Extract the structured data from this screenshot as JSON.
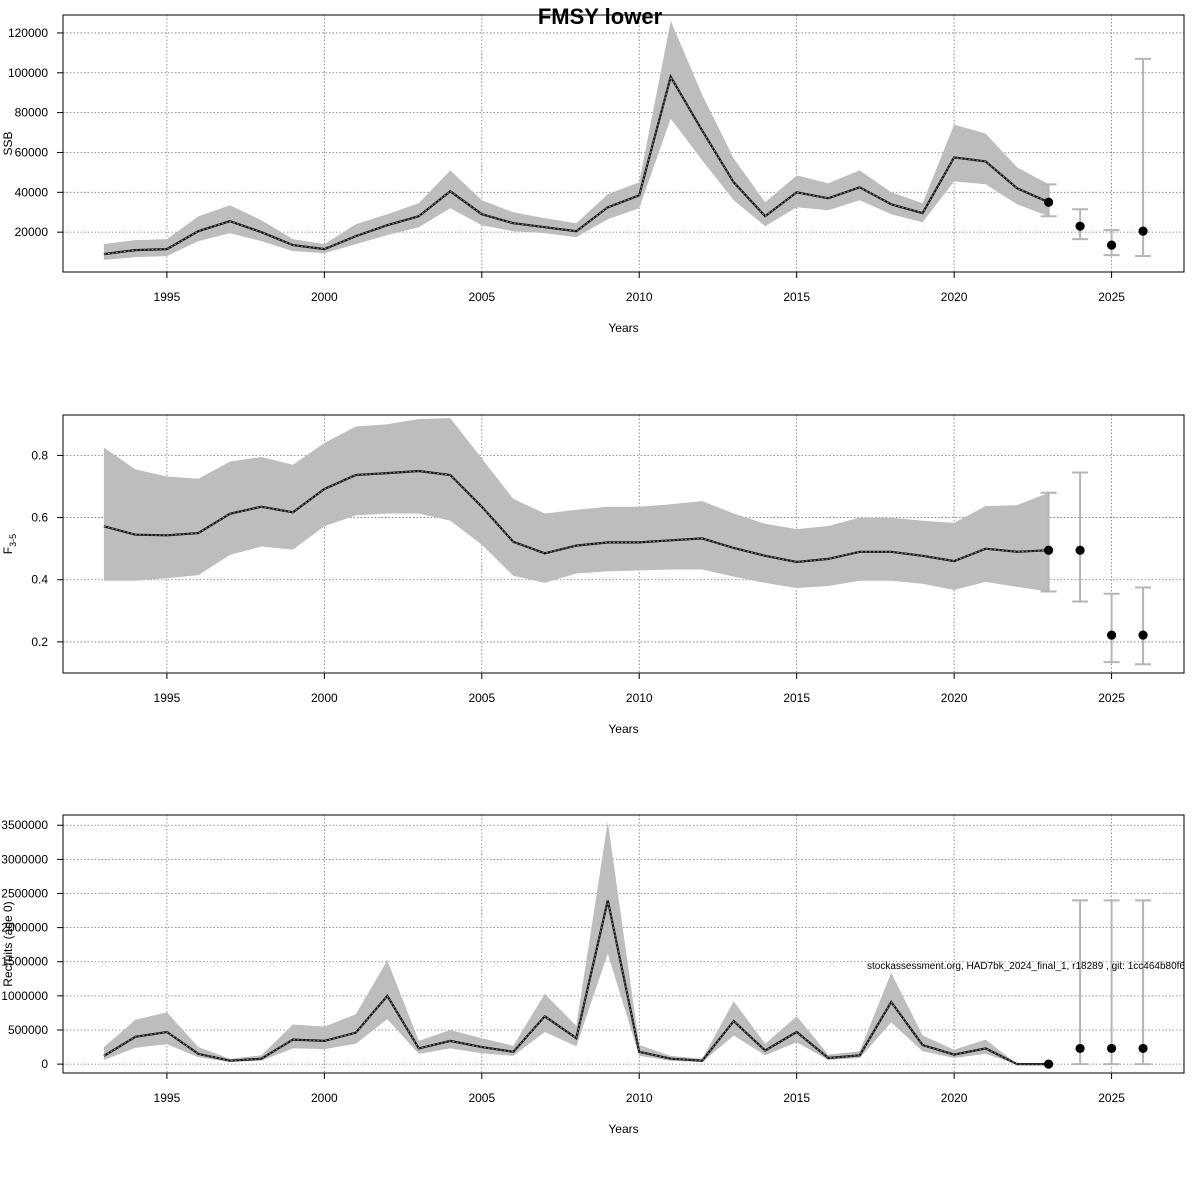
{
  "title": "FMSY lower",
  "footnote": "stockassessment.org, HAD7bk_2024_final_1, r18289 , git: 1cc464b80f6",
  "chart_data": [
    {
      "type": "line",
      "xlabel": "Years",
      "ylabel": "SSB",
      "xlim": [
        1991.7,
        2027.3
      ],
      "ylim": [
        0,
        129000
      ],
      "xticks": [
        1995,
        2000,
        2005,
        2010,
        2015,
        2020,
        2025
      ],
      "yticks": [
        20000,
        40000,
        60000,
        80000,
        100000,
        120000
      ],
      "ytick_labels": [
        "20000",
        "40000",
        "60000",
        "80000",
        "100000",
        "120000"
      ],
      "grid": true,
      "x": [
        1993,
        1994,
        1995,
        1996,
        1997,
        1998,
        1999,
        2000,
        2001,
        2002,
        2003,
        2004,
        2005,
        2006,
        2007,
        2008,
        2009,
        2010,
        2011,
        2012,
        2013,
        2014,
        2015,
        2016,
        2017,
        2018,
        2019,
        2020,
        2021,
        2022,
        2023
      ],
      "estimate": [
        9000,
        11000,
        11500,
        20500,
        25500,
        20000,
        13500,
        11500,
        18000,
        23500,
        28000,
        40500,
        29000,
        24500,
        22500,
        20500,
        32500,
        38500,
        98000,
        71000,
        45000,
        28000,
        40000,
        37000,
        42500,
        34000,
        29500,
        57500,
        55500,
        42000,
        35000
      ],
      "lower": [
        6000,
        7500,
        8000,
        15500,
        19500,
        15500,
        10500,
        9500,
        14000,
        18500,
        22500,
        32000,
        23500,
        20500,
        19500,
        17500,
        26500,
        32000,
        77000,
        56000,
        36000,
        23000,
        32500,
        31000,
        36000,
        29000,
        25000,
        45500,
        44000,
        34000,
        28000
      ],
      "upper": [
        14000,
        16000,
        16500,
        28000,
        33500,
        26000,
        16500,
        14000,
        24000,
        29000,
        34500,
        51000,
        36000,
        30000,
        27000,
        24500,
        39000,
        45000,
        126000,
        89000,
        57000,
        35000,
        48500,
        44500,
        51000,
        40000,
        34500,
        74000,
        69500,
        52500,
        44000
      ],
      "forecast": {
        "x": [
          2023,
          2024,
          2025,
          2026
        ],
        "values": [
          35000,
          23000,
          13500,
          20500
        ],
        "lower": [
          28000,
          16500,
          8500,
          8000
        ],
        "upper": [
          44000,
          31500,
          21000,
          107000
        ]
      }
    },
    {
      "type": "line",
      "xlabel": "Years",
      "ylabel": "F",
      "ylabel_subscript": "3-5",
      "xlim": [
        1991.7,
        2027.3
      ],
      "ylim": [
        0.1,
        0.93
      ],
      "xticks": [
        1995,
        2000,
        2005,
        2010,
        2015,
        2020,
        2025
      ],
      "yticks": [
        0.2,
        0.4,
        0.6,
        0.8
      ],
      "ytick_labels": [
        "0.2",
        "0.4",
        "0.6",
        "0.8"
      ],
      "grid": true,
      "x": [
        1993,
        1994,
        1995,
        1996,
        1997,
        1998,
        1999,
        2000,
        2001,
        2002,
        2003,
        2004,
        2005,
        2006,
        2007,
        2008,
        2009,
        2010,
        2011,
        2012,
        2013,
        2014,
        2015,
        2016,
        2017,
        2018,
        2019,
        2020,
        2021,
        2022,
        2023
      ],
      "estimate": [
        0.572,
        0.545,
        0.543,
        0.55,
        0.612,
        0.635,
        0.617,
        0.692,
        0.737,
        0.743,
        0.75,
        0.737,
        0.635,
        0.522,
        0.485,
        0.51,
        0.52,
        0.52,
        0.527,
        0.533,
        0.502,
        0.477,
        0.457,
        0.467,
        0.49,
        0.49,
        0.477,
        0.46,
        0.5,
        0.49,
        0.495
      ],
      "lower": [
        0.397,
        0.397,
        0.405,
        0.415,
        0.48,
        0.507,
        0.497,
        0.572,
        0.607,
        0.613,
        0.613,
        0.59,
        0.513,
        0.413,
        0.39,
        0.42,
        0.427,
        0.43,
        0.433,
        0.433,
        0.41,
        0.39,
        0.373,
        0.38,
        0.397,
        0.397,
        0.387,
        0.367,
        0.393,
        0.377,
        0.362
      ],
      "upper": [
        0.825,
        0.755,
        0.732,
        0.725,
        0.78,
        0.795,
        0.77,
        0.84,
        0.893,
        0.9,
        0.917,
        0.92,
        0.79,
        0.66,
        0.613,
        0.625,
        0.635,
        0.635,
        0.643,
        0.653,
        0.613,
        0.58,
        0.563,
        0.573,
        0.6,
        0.6,
        0.59,
        0.583,
        0.637,
        0.64,
        0.68
      ],
      "forecast": {
        "x": [
          2023,
          2024,
          2025,
          2026
        ],
        "values": [
          0.495,
          0.495,
          0.222,
          0.222
        ],
        "lower": [
          0.362,
          0.33,
          0.135,
          0.128
        ],
        "upper": [
          0.68,
          0.745,
          0.355,
          0.375
        ]
      }
    },
    {
      "type": "line",
      "xlabel": "Years",
      "ylabel": "Recruits (age 0)",
      "xlim": [
        1991.7,
        2027.3
      ],
      "ylim": [
        -130000,
        3650000
      ],
      "xticks": [
        1995,
        2000,
        2005,
        2010,
        2015,
        2020,
        2025
      ],
      "yticks": [
        0,
        500000,
        1000000,
        1500000,
        2000000,
        2500000,
        3000000,
        3500000
      ],
      "ytick_labels": [
        "0",
        "500000",
        "1000000",
        "1500000",
        "2000000",
        "2500000",
        "3000000",
        "3500000"
      ],
      "grid": true,
      "x": [
        1993,
        1994,
        1995,
        1996,
        1997,
        1998,
        1999,
        2000,
        2001,
        2002,
        2003,
        2004,
        2005,
        2006,
        2007,
        2008,
        2009,
        2010,
        2011,
        2012,
        2013,
        2014,
        2015,
        2016,
        2017,
        2018,
        2019,
        2020,
        2021,
        2022,
        2023
      ],
      "estimate": [
        120000,
        400000,
        470000,
        150000,
        50000,
        80000,
        360000,
        340000,
        460000,
        1000000,
        230000,
        340000,
        250000,
        180000,
        700000,
        380000,
        2400000,
        180000,
        80000,
        50000,
        630000,
        200000,
        470000,
        90000,
        130000,
        910000,
        280000,
        140000,
        230000,
        0,
        0
      ],
      "lower": [
        60000,
        240000,
        290000,
        100000,
        30000,
        50000,
        230000,
        220000,
        300000,
        660000,
        150000,
        230000,
        160000,
        120000,
        470000,
        260000,
        1620000,
        120000,
        50000,
        30000,
        420000,
        130000,
        320000,
        60000,
        90000,
        610000,
        190000,
        90000,
        150000,
        0,
        0
      ],
      "upper": [
        250000,
        650000,
        760000,
        250000,
        80000,
        130000,
        580000,
        550000,
        730000,
        1520000,
        340000,
        500000,
        380000,
        270000,
        1030000,
        560000,
        3550000,
        280000,
        120000,
        80000,
        920000,
        300000,
        700000,
        140000,
        190000,
        1340000,
        420000,
        210000,
        360000,
        0,
        0
      ],
      "forecast": {
        "x": [
          2023,
          2024,
          2025,
          2026
        ],
        "values": [
          0,
          230000,
          230000,
          230000
        ],
        "lower": [
          0,
          0,
          0,
          0
        ],
        "upper": [
          0,
          2400000,
          2400000,
          2400000
        ]
      }
    }
  ]
}
